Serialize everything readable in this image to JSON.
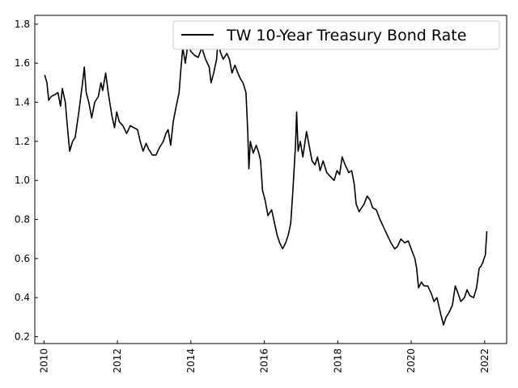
{
  "chart_data": {
    "type": "line",
    "title": "",
    "xlabel": "",
    "ylabel": "",
    "xlim": [
      2009.75,
      2022.6
    ],
    "ylim": [
      0.165,
      1.845
    ],
    "xticks": [
      2010,
      2012,
      2014,
      2016,
      2018,
      2020,
      2022
    ],
    "xtick_labels": [
      "2010",
      "2012",
      "2014",
      "2016",
      "2018",
      "2020",
      "2022"
    ],
    "yticks": [
      0.2,
      0.4,
      0.6,
      0.8,
      1.0,
      1.2,
      1.4,
      1.6,
      1.8
    ],
    "ytick_labels": [
      "0.2",
      "0.4",
      "0.6",
      "0.8",
      "1.0",
      "1.2",
      "1.4",
      "1.6",
      "1.8"
    ],
    "grid": false,
    "legend_position": "top-right",
    "line_color": "#000000",
    "series": [
      {
        "name": "TW 10-Year Treasury Bond Rate",
        "points": [
          [
            2010.02,
            1.54
          ],
          [
            2010.08,
            1.5
          ],
          [
            2010.13,
            1.41
          ],
          [
            2010.2,
            1.43
          ],
          [
            2010.3,
            1.44
          ],
          [
            2010.38,
            1.45
          ],
          [
            2010.45,
            1.38
          ],
          [
            2010.5,
            1.47
          ],
          [
            2010.58,
            1.4
          ],
          [
            2010.65,
            1.25
          ],
          [
            2010.7,
            1.15
          ],
          [
            2010.78,
            1.2
          ],
          [
            2010.85,
            1.22
          ],
          [
            2010.95,
            1.35
          ],
          [
            2011.05,
            1.5
          ],
          [
            2011.1,
            1.58
          ],
          [
            2011.15,
            1.45
          ],
          [
            2011.22,
            1.4
          ],
          [
            2011.3,
            1.32
          ],
          [
            2011.38,
            1.4
          ],
          [
            2011.48,
            1.43
          ],
          [
            2011.55,
            1.5
          ],
          [
            2011.6,
            1.46
          ],
          [
            2011.68,
            1.55
          ],
          [
            2011.75,
            1.45
          ],
          [
            2011.85,
            1.33
          ],
          [
            2011.92,
            1.27
          ],
          [
            2011.98,
            1.35
          ],
          [
            2012.05,
            1.3
          ],
          [
            2012.15,
            1.28
          ],
          [
            2012.25,
            1.24
          ],
          [
            2012.35,
            1.28
          ],
          [
            2012.45,
            1.27
          ],
          [
            2012.55,
            1.26
          ],
          [
            2012.62,
            1.2
          ],
          [
            2012.7,
            1.15
          ],
          [
            2012.78,
            1.19
          ],
          [
            2012.85,
            1.16
          ],
          [
            2012.95,
            1.13
          ],
          [
            2013.05,
            1.13
          ],
          [
            2013.15,
            1.17
          ],
          [
            2013.25,
            1.2
          ],
          [
            2013.32,
            1.24
          ],
          [
            2013.38,
            1.26
          ],
          [
            2013.45,
            1.18
          ],
          [
            2013.52,
            1.3
          ],
          [
            2013.6,
            1.38
          ],
          [
            2013.68,
            1.45
          ],
          [
            2013.72,
            1.55
          ],
          [
            2013.78,
            1.68
          ],
          [
            2013.85,
            1.6
          ],
          [
            2013.92,
            1.7
          ],
          [
            2014.0,
            1.66
          ],
          [
            2014.1,
            1.64
          ],
          [
            2014.2,
            1.63
          ],
          [
            2014.3,
            1.68
          ],
          [
            2014.4,
            1.62
          ],
          [
            2014.5,
            1.58
          ],
          [
            2014.55,
            1.5
          ],
          [
            2014.62,
            1.55
          ],
          [
            2014.7,
            1.62
          ],
          [
            2014.75,
            1.74
          ],
          [
            2014.8,
            1.66
          ],
          [
            2014.88,
            1.62
          ],
          [
            2014.98,
            1.65
          ],
          [
            2015.05,
            1.62
          ],
          [
            2015.12,
            1.55
          ],
          [
            2015.2,
            1.59
          ],
          [
            2015.28,
            1.55
          ],
          [
            2015.35,
            1.52
          ],
          [
            2015.42,
            1.5
          ],
          [
            2015.5,
            1.45
          ],
          [
            2015.55,
            1.25
          ],
          [
            2015.58,
            1.06
          ],
          [
            2015.62,
            1.2
          ],
          [
            2015.7,
            1.14
          ],
          [
            2015.78,
            1.18
          ],
          [
            2015.85,
            1.14
          ],
          [
            2015.9,
            1.1
          ],
          [
            2015.95,
            0.95
          ],
          [
            2016.02,
            0.9
          ],
          [
            2016.1,
            0.82
          ],
          [
            2016.2,
            0.85
          ],
          [
            2016.28,
            0.78
          ],
          [
            2016.35,
            0.72
          ],
          [
            2016.42,
            0.68
          ],
          [
            2016.5,
            0.65
          ],
          [
            2016.58,
            0.68
          ],
          [
            2016.65,
            0.72
          ],
          [
            2016.72,
            0.78
          ],
          [
            2016.78,
            0.95
          ],
          [
            2016.85,
            1.18
          ],
          [
            2016.88,
            1.35
          ],
          [
            2016.92,
            1.15
          ],
          [
            2016.98,
            1.2
          ],
          [
            2017.05,
            1.12
          ],
          [
            2017.15,
            1.25
          ],
          [
            2017.22,
            1.18
          ],
          [
            2017.3,
            1.1
          ],
          [
            2017.38,
            1.08
          ],
          [
            2017.45,
            1.12
          ],
          [
            2017.52,
            1.05
          ],
          [
            2017.6,
            1.1
          ],
          [
            2017.7,
            1.04
          ],
          [
            2017.8,
            1.02
          ],
          [
            2017.9,
            1.0
          ],
          [
            2017.98,
            1.05
          ],
          [
            2018.05,
            1.03
          ],
          [
            2018.12,
            1.12
          ],
          [
            2018.2,
            1.08
          ],
          [
            2018.3,
            1.04
          ],
          [
            2018.38,
            1.05
          ],
          [
            2018.45,
            0.98
          ],
          [
            2018.5,
            0.88
          ],
          [
            2018.58,
            0.84
          ],
          [
            2018.65,
            0.86
          ],
          [
            2018.72,
            0.88
          ],
          [
            2018.8,
            0.92
          ],
          [
            2018.88,
            0.9
          ],
          [
            2018.95,
            0.86
          ],
          [
            2019.05,
            0.85
          ],
          [
            2019.15,
            0.8
          ],
          [
            2019.25,
            0.76
          ],
          [
            2019.35,
            0.72
          ],
          [
            2019.45,
            0.68
          ],
          [
            2019.55,
            0.65
          ],
          [
            2019.62,
            0.66
          ],
          [
            2019.72,
            0.7
          ],
          [
            2019.82,
            0.68
          ],
          [
            2019.92,
            0.69
          ],
          [
            2020.02,
            0.64
          ],
          [
            2020.1,
            0.6
          ],
          [
            2020.15,
            0.55
          ],
          [
            2020.2,
            0.45
          ],
          [
            2020.28,
            0.48
          ],
          [
            2020.35,
            0.46
          ],
          [
            2020.45,
            0.46
          ],
          [
            2020.55,
            0.42
          ],
          [
            2020.62,
            0.38
          ],
          [
            2020.7,
            0.4
          ],
          [
            2020.75,
            0.36
          ],
          [
            2020.8,
            0.32
          ],
          [
            2020.88,
            0.26
          ],
          [
            2020.95,
            0.3
          ],
          [
            2021.02,
            0.32
          ],
          [
            2021.12,
            0.36
          ],
          [
            2021.2,
            0.46
          ],
          [
            2021.28,
            0.42
          ],
          [
            2021.35,
            0.38
          ],
          [
            2021.45,
            0.4
          ],
          [
            2021.52,
            0.44
          ],
          [
            2021.6,
            0.41
          ],
          [
            2021.7,
            0.4
          ],
          [
            2021.78,
            0.45
          ],
          [
            2021.85,
            0.55
          ],
          [
            2021.9,
            0.56
          ],
          [
            2021.95,
            0.58
          ],
          [
            2022.02,
            0.62
          ],
          [
            2022.06,
            0.74
          ]
        ]
      }
    ]
  }
}
